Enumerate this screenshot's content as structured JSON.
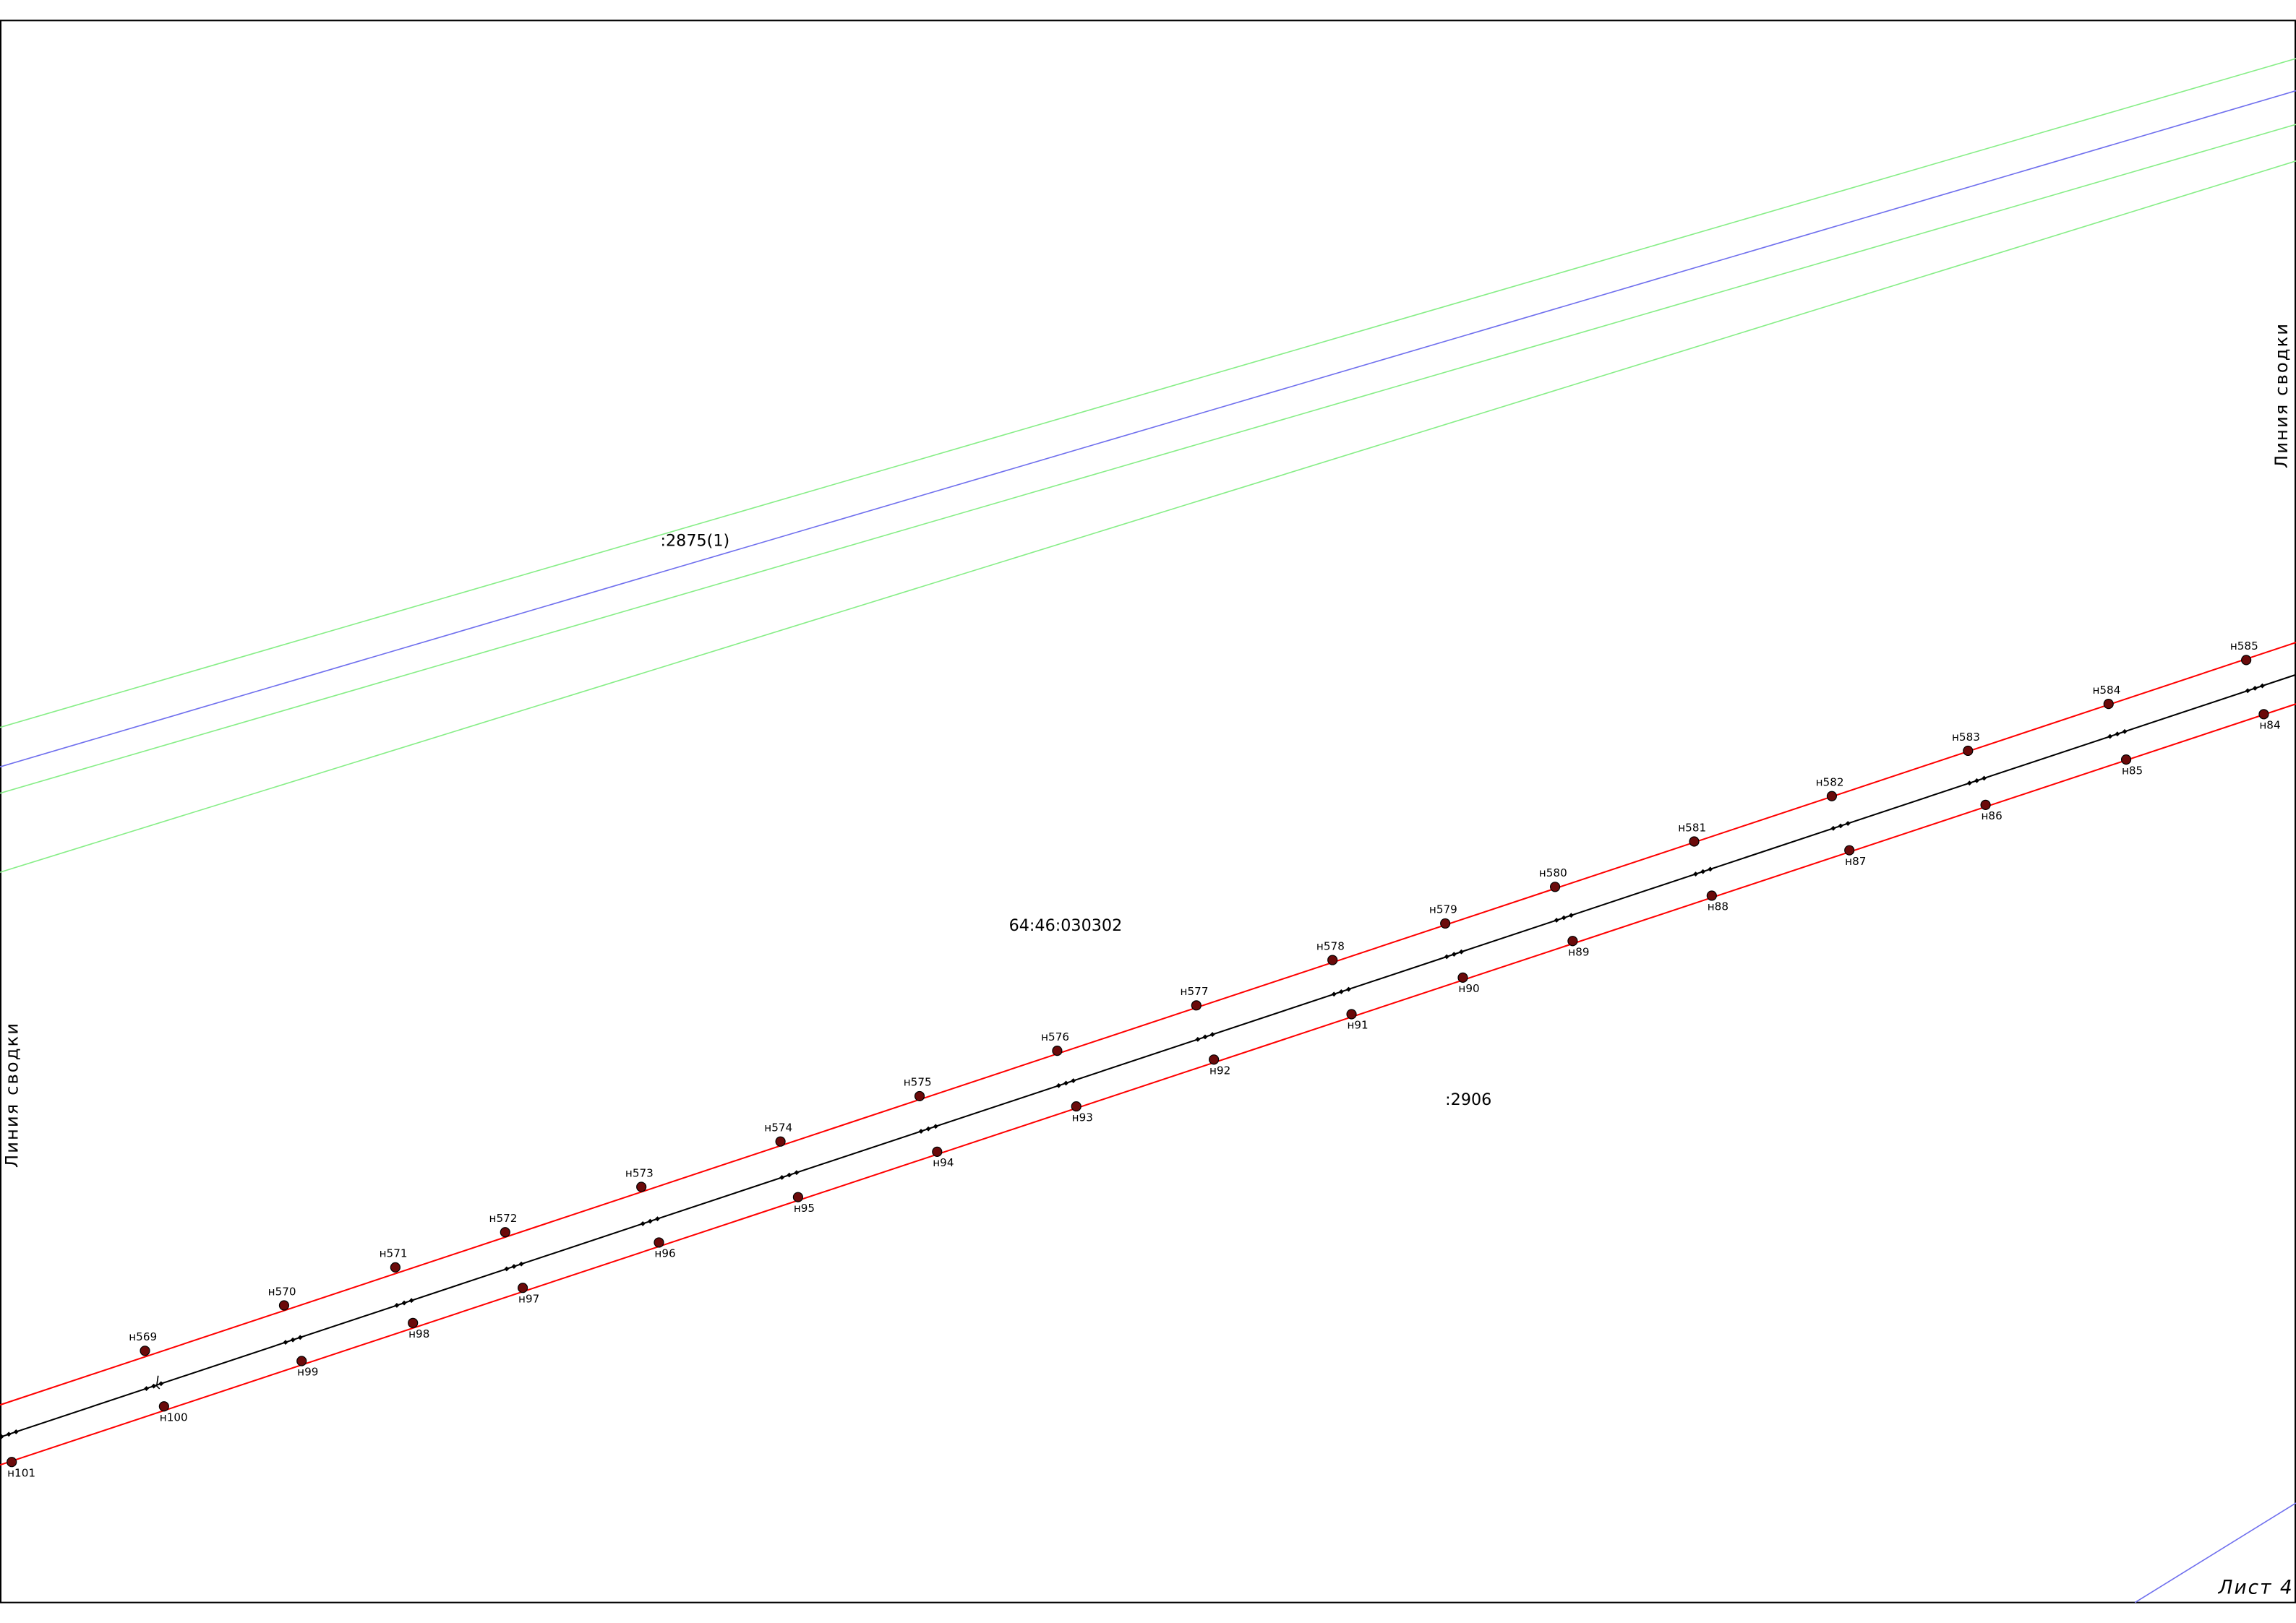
{
  "sheet": {
    "sheet_label": "Лист 4",
    "seam_label_left": "Линия сводки",
    "seam_label_right": "Линия сводки"
  },
  "parcels": {
    "north_parcel": ":2875(1)",
    "block_number": "64:46:030302",
    "south_parcel": ":2906"
  },
  "colors": {
    "boundary_red": "#ff0000",
    "axis_black": "#000000",
    "existing_green": "#88ee88",
    "existing_blue": "#7070ee",
    "point_fill": "#6b0a0a"
  },
  "upper_points": [
    {
      "name": "н569"
    },
    {
      "name": "н570"
    },
    {
      "name": "н571"
    },
    {
      "name": "н572"
    },
    {
      "name": "н573"
    },
    {
      "name": "н574"
    },
    {
      "name": "н575"
    },
    {
      "name": "н576"
    },
    {
      "name": "н577"
    },
    {
      "name": "н578"
    },
    {
      "name": "н579"
    },
    {
      "name": "н580"
    },
    {
      "name": "н581"
    },
    {
      "name": "н582"
    },
    {
      "name": "н583"
    },
    {
      "name": "н584"
    },
    {
      "name": "н585"
    }
  ],
  "lower_points": [
    {
      "name": "н101"
    },
    {
      "name": "н100"
    },
    {
      "name": "н99"
    },
    {
      "name": "н98"
    },
    {
      "name": "н97"
    },
    {
      "name": "н96"
    },
    {
      "name": "н95"
    },
    {
      "name": "н94"
    },
    {
      "name": "н93"
    },
    {
      "name": "н92"
    },
    {
      "name": "н91"
    },
    {
      "name": "н90"
    },
    {
      "name": "н89"
    },
    {
      "name": "н88"
    },
    {
      "name": "н87"
    },
    {
      "name": "н86"
    },
    {
      "name": "н85"
    },
    {
      "name": "н84"
    }
  ]
}
